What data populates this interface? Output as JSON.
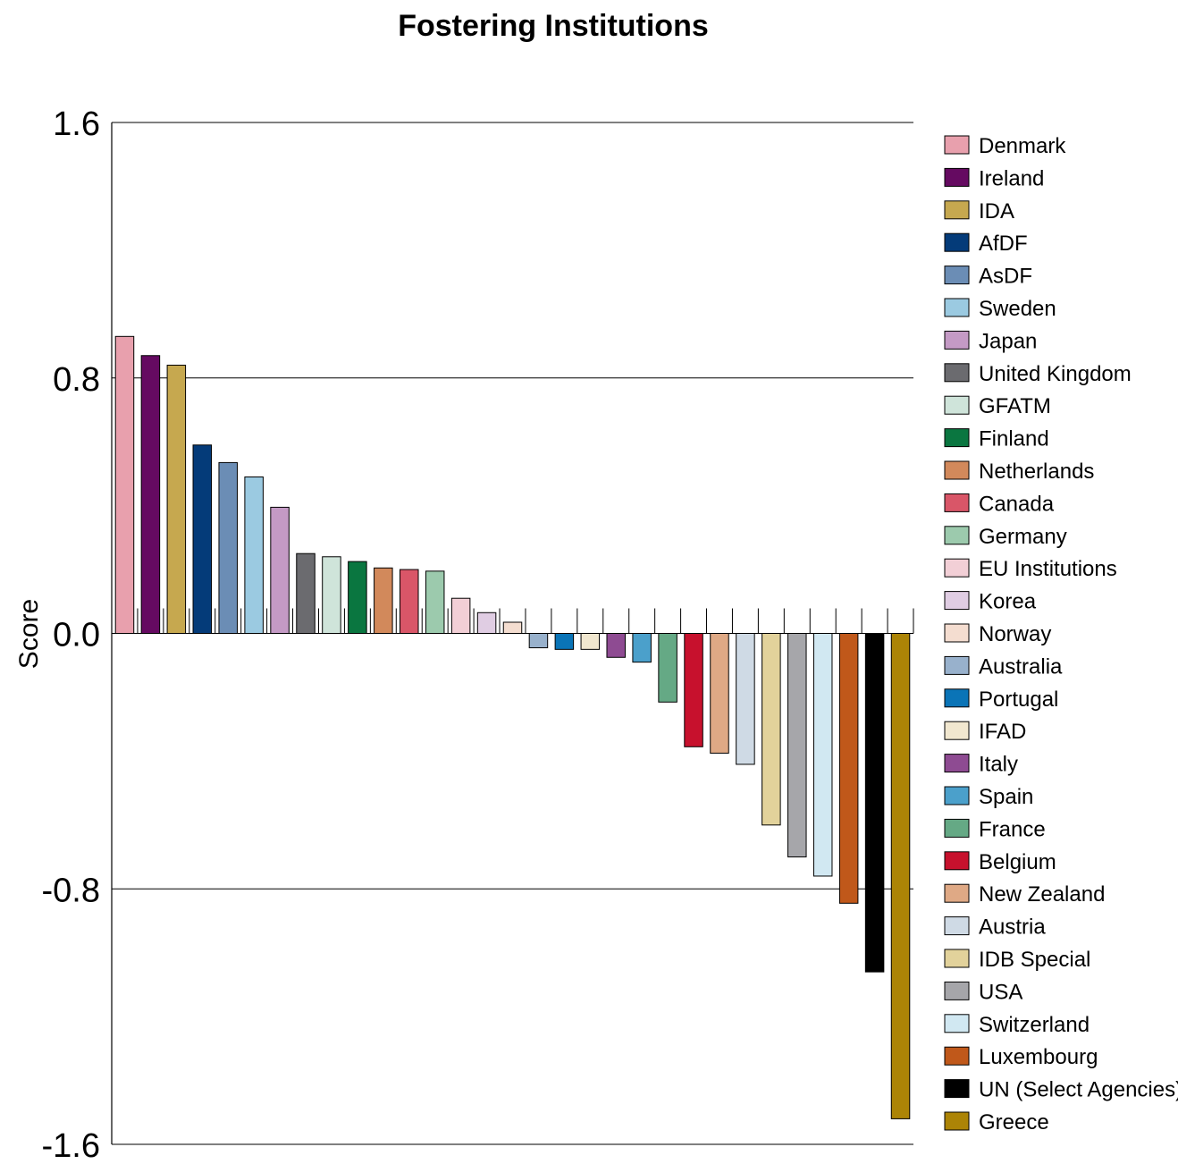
{
  "chart_data": {
    "type": "bar",
    "title": "Fostering Institutions",
    "xlabel": "",
    "ylabel": "Score",
    "ylim": [
      -1.6,
      1.6
    ],
    "yticks": [
      1.6,
      0.8,
      0.0,
      -0.8,
      -1.6
    ],
    "ytick_labels": [
      "1.6",
      "0.8",
      "0.0",
      "-0.8",
      "-1.6"
    ],
    "grid": true,
    "legend_position": "right",
    "categories": [
      "Denmark",
      "Ireland",
      "IDA",
      "AfDF",
      "AsDF",
      "Sweden",
      "Japan",
      "United Kingdom",
      "GFATM",
      "Finland",
      "Netherlands",
      "Canada",
      "Germany",
      "EU Institutions",
      "Korea",
      "Norway",
      "Australia",
      "Portugal",
      "IFAD",
      "Italy",
      "Spain",
      "France",
      "Belgium",
      "New Zealand",
      "Austria",
      "IDB Special",
      "USA",
      "Switzerland",
      "Luxembourg",
      "UN (Select Agencies)",
      "Greece"
    ],
    "values": [
      0.93,
      0.87,
      0.84,
      0.59,
      0.535,
      0.49,
      0.395,
      0.25,
      0.24,
      0.225,
      0.205,
      0.2,
      0.195,
      0.11,
      0.065,
      0.035,
      -0.045,
      -0.05,
      -0.05,
      -0.075,
      -0.09,
      -0.215,
      -0.355,
      -0.375,
      -0.41,
      -0.6,
      -0.7,
      -0.76,
      -0.845,
      -1.06,
      -1.52
    ],
    "colors": [
      "#e8a0ad",
      "#650a61",
      "#c6a84f",
      "#043b79",
      "#6b8db5",
      "#9bcae1",
      "#c49ac5",
      "#6b6b6f",
      "#cfe4da",
      "#0a7640",
      "#d2895b",
      "#d95668",
      "#9ccaad",
      "#f2cfd6",
      "#e0cde3",
      "#f4ddd0",
      "#98b1cc",
      "#0a74b7",
      "#f1e7cf",
      "#8e4b92",
      "#4ba0cb",
      "#65a985",
      "#c7112d",
      "#dfa985",
      "#cfdae5",
      "#e2d29b",
      "#a6a6aa",
      "#d1e8f2",
      "#c0581a",
      "#000000",
      "#ac8406"
    ]
  }
}
